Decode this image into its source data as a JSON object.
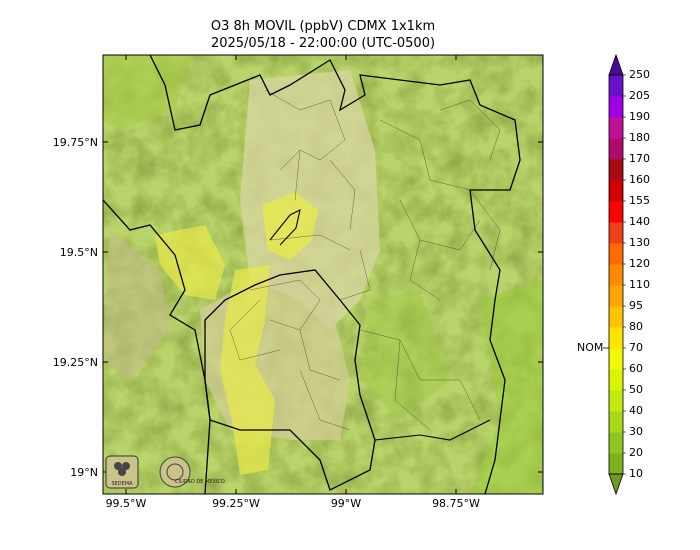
{
  "title": {
    "line1": "O3 8h MOVIL (ppbV) CDMX 1x1km",
    "line2": "2025/05/18 - 22:00:00 (UTC-0500)"
  },
  "map": {
    "y_ticks": [
      "19.75°N",
      "19.5°N",
      "19.25°N",
      "19°N"
    ],
    "x_ticks": [
      "99.5°W",
      "99.25°W",
      "99°W",
      "98.75°W"
    ],
    "logos": [
      "SEDEMA",
      "CIUDAD DE MÉXICO"
    ],
    "colors": {
      "terrain_base": "#b9d46a",
      "terrain_dark": "#8aa84a",
      "urban": "#d9d6a2",
      "plume_yellow": "#e8ea4a",
      "boundary": "#000000"
    }
  },
  "colorbar": {
    "levels": [
      "10",
      "20",
      "30",
      "40",
      "50",
      "60",
      "70",
      "80",
      "95",
      "110",
      "120",
      "130",
      "140",
      "155",
      "160",
      "170",
      "180",
      "190",
      "205",
      "250"
    ],
    "colors": [
      "#6e9a1e",
      "#7eb01e",
      "#90c41e",
      "#a7d81a",
      "#c2ea0c",
      "#d8f400",
      "#f2fa00",
      "#ffe400",
      "#ffc400",
      "#ffa400",
      "#ff8a00",
      "#ff6a00",
      "#f0401a",
      "#ff0000",
      "#d40000",
      "#a80a14",
      "#b00a6a",
      "#c0109a",
      "#a000e8",
      "#6a10c8",
      "#4a0a98"
    ],
    "nom_label": "NOM",
    "nom_value": 70
  }
}
